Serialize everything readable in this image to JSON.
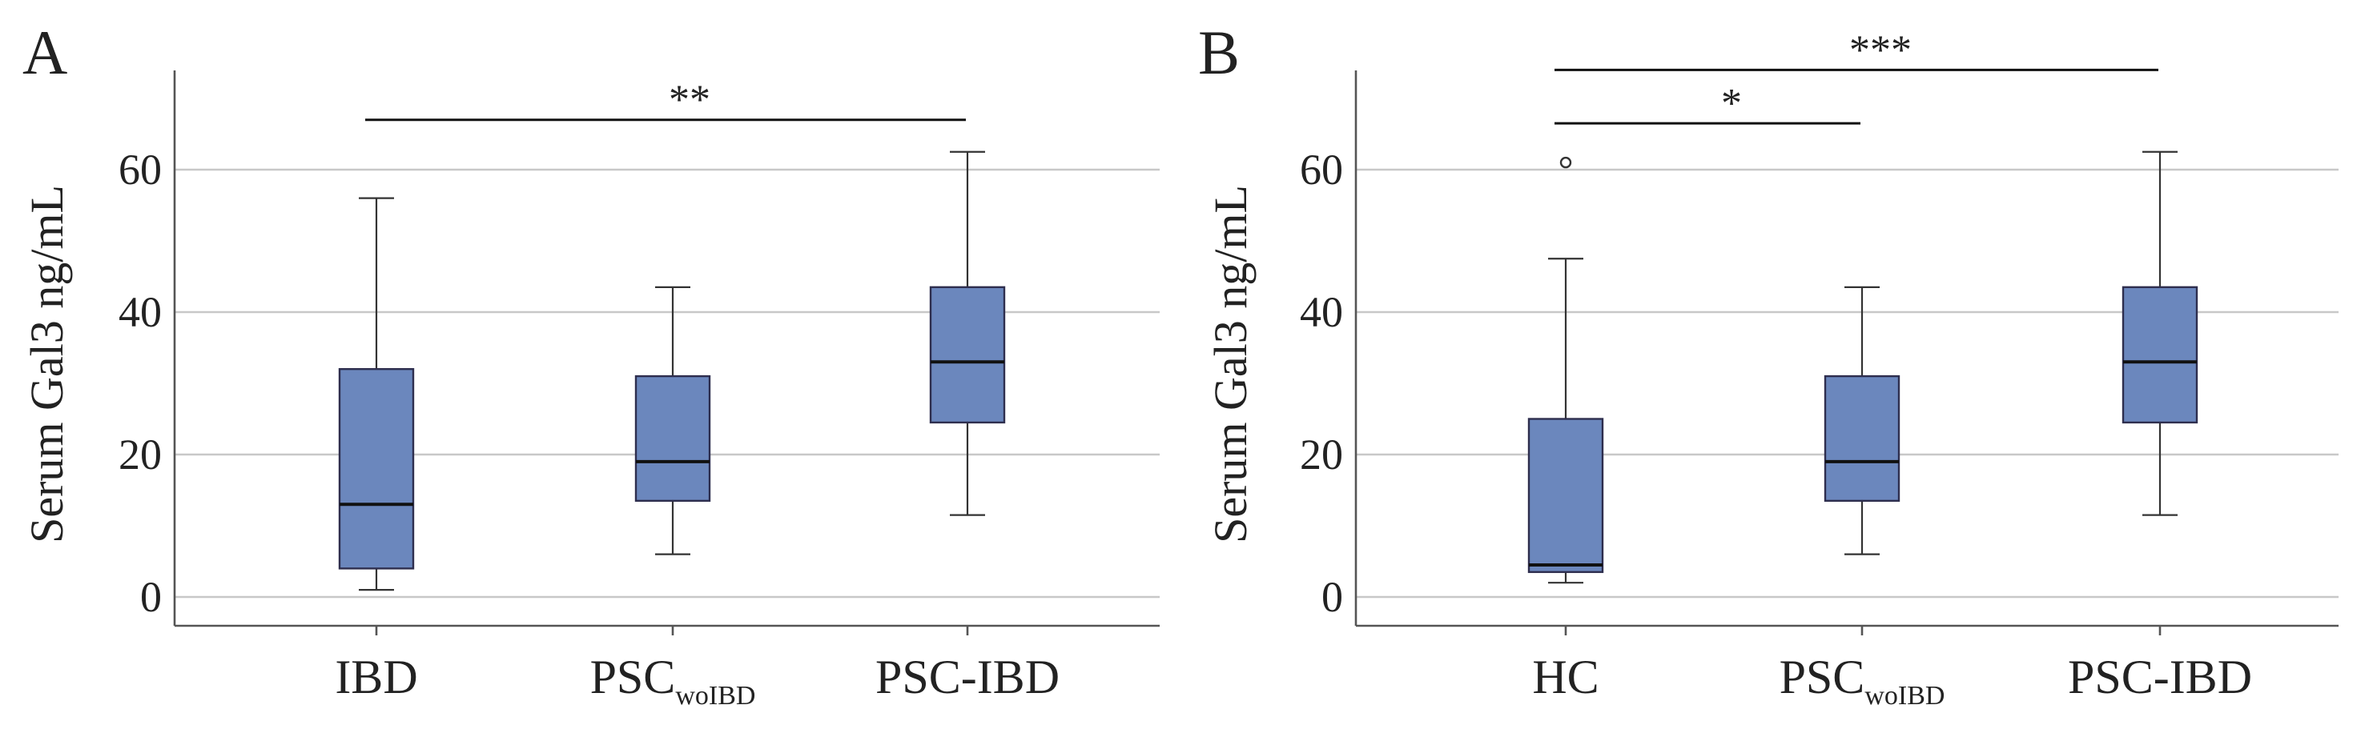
{
  "colors": {
    "box_fill": "#6b87bd",
    "grid": "#c8c8c8"
  },
  "chart_data": [
    {
      "type": "boxplot",
      "panel": "A",
      "title": "",
      "xlabel": "",
      "ylabel": "Serum Gal3 ng/mL",
      "ylim": [
        -4,
        73
      ],
      "yticks": [
        0,
        20,
        40,
        60
      ],
      "grid": true,
      "categories": [
        {
          "label": "IBD",
          "main": "IBD",
          "sub": ""
        },
        {
          "label": "PSCwoIBD",
          "main": "PSC",
          "sub": "woIBD"
        },
        {
          "label": "PSC-IBD",
          "main": "PSC-IBD",
          "sub": ""
        }
      ],
      "boxes": [
        {
          "category": "IBD",
          "min": 1,
          "q1": 4,
          "median": 13,
          "q3": 32,
          "max": 56,
          "outliers": []
        },
        {
          "category": "PSCwoIBD",
          "min": 6,
          "q1": 13.5,
          "median": 19,
          "q3": 31,
          "max": 43.5,
          "outliers": []
        },
        {
          "category": "PSC-IBD",
          "min": 11.5,
          "q1": 24.5,
          "median": 33,
          "q3": 43.5,
          "max": 62.5,
          "outliers": []
        }
      ],
      "significance": [
        {
          "from": 0,
          "to": 2,
          "y": 67,
          "label": "**"
        }
      ]
    },
    {
      "type": "boxplot",
      "panel": "B",
      "title": "",
      "xlabel": "",
      "ylabel": "Serum Gal3 ng/mL",
      "ylim": [
        -4,
        73
      ],
      "yticks": [
        0,
        20,
        40,
        60
      ],
      "grid": true,
      "categories": [
        {
          "label": "HC",
          "main": "HC",
          "sub": ""
        },
        {
          "label": "PSCwoIBD",
          "main": "PSC",
          "sub": "woIBD"
        },
        {
          "label": "PSC-IBD",
          "main": "PSC-IBD",
          "sub": ""
        }
      ],
      "boxes": [
        {
          "category": "HC",
          "min": 2,
          "q1": 3.5,
          "median": 4.5,
          "q3": 25,
          "max": 47.5,
          "outliers": [
            61
          ]
        },
        {
          "category": "PSCwoIBD",
          "min": 6,
          "q1": 13.5,
          "median": 19,
          "q3": 31,
          "max": 43.5,
          "outliers": []
        },
        {
          "category": "PSC-IBD",
          "min": 11.5,
          "q1": 24.5,
          "median": 33,
          "q3": 43.5,
          "max": 62.5,
          "outliers": []
        }
      ],
      "significance": [
        {
          "from": 0,
          "to": 1,
          "y": 66.5,
          "label": "*"
        },
        {
          "from": 0,
          "to": 2,
          "y": 74,
          "label": "***"
        }
      ]
    }
  ]
}
